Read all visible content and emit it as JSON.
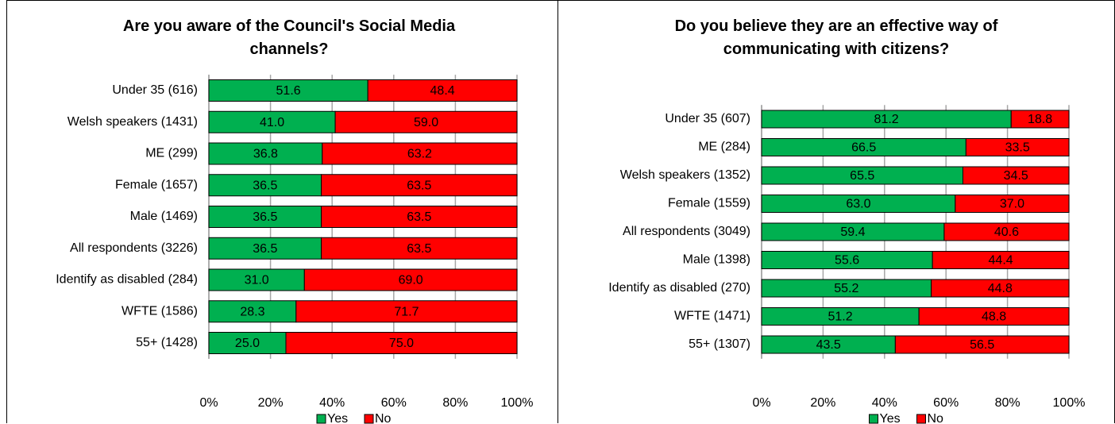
{
  "chart_data": [
    {
      "type": "bar",
      "orientation": "horizontal",
      "stacked": true,
      "title": "Are you aware of the Council's Social Media channels?",
      "categories": [
        "Under 35 (616)",
        "Welsh speakers (1431)",
        "ME (299)",
        "Female (1657)",
        "Male (1469)",
        "All respondents (3226)",
        "Identify as disabled (284)",
        "WFTE (1586)",
        "55+ (1428)"
      ],
      "series": [
        {
          "name": "Yes",
          "color": "#00b050",
          "values": [
            51.6,
            41.0,
            36.8,
            36.5,
            36.5,
            36.5,
            31.0,
            28.3,
            25.0
          ],
          "value_labels": [
            "51.6",
            "41.0",
            "36.8",
            "36.5",
            "36.5",
            "36.5",
            "31.0",
            "28.3",
            "25.0"
          ]
        },
        {
          "name": "No",
          "color": "#ff0000",
          "values": [
            48.4,
            59.0,
            63.2,
            63.5,
            63.5,
            63.5,
            69.0,
            71.7,
            75.0
          ],
          "value_labels": [
            "48.4",
            "59.0",
            "63.2",
            "63.5",
            "63.5",
            "63.5",
            "69.0",
            "71.7",
            "75.0"
          ]
        }
      ],
      "xlim": [
        0,
        100
      ],
      "xticks": [
        {
          "value": 0,
          "label": "0%"
        },
        {
          "value": 20,
          "label": "20%"
        },
        {
          "value": 40,
          "label": "40%"
        },
        {
          "value": 60,
          "label": "60%"
        },
        {
          "value": 80,
          "label": "80%"
        },
        {
          "value": 100,
          "label": "100%"
        }
      ],
      "grid": true,
      "legend": "bottom"
    },
    {
      "type": "bar",
      "orientation": "horizontal",
      "stacked": true,
      "title": "Do you believe they are an effective way of communicating with citizens?",
      "categories": [
        "Under 35 (607)",
        "ME (284)",
        "Welsh speakers (1352)",
        "Female (1559)",
        "All respondents (3049)",
        "Male (1398)",
        "Identify as disabled (270)",
        "WFTE (1471)",
        "55+ (1307)"
      ],
      "series": [
        {
          "name": "Yes",
          "color": "#00b050",
          "values": [
            81.2,
            66.5,
            65.5,
            63.0,
            59.4,
            55.6,
            55.2,
            51.2,
            43.5
          ],
          "value_labels": [
            "81.2",
            "66.5",
            "65.5",
            "63.0",
            "59.4",
            "55.6",
            "55.2",
            "51.2",
            "43.5"
          ]
        },
        {
          "name": "No",
          "color": "#ff0000",
          "values": [
            18.8,
            33.5,
            34.5,
            37.0,
            40.6,
            44.4,
            44.8,
            48.8,
            56.5
          ],
          "value_labels": [
            "18.8",
            "33.5",
            "34.5",
            "37.0",
            "40.6",
            "44.4",
            "44.8",
            "48.8",
            "56.5"
          ]
        }
      ],
      "xlim": [
        0,
        100
      ],
      "xticks": [
        {
          "value": 0,
          "label": "0%"
        },
        {
          "value": 20,
          "label": "20%"
        },
        {
          "value": 40,
          "label": "40%"
        },
        {
          "value": 60,
          "label": "60%"
        },
        {
          "value": 80,
          "label": "80%"
        },
        {
          "value": 100,
          "label": "100%"
        }
      ],
      "grid": true,
      "legend": "bottom"
    }
  ]
}
